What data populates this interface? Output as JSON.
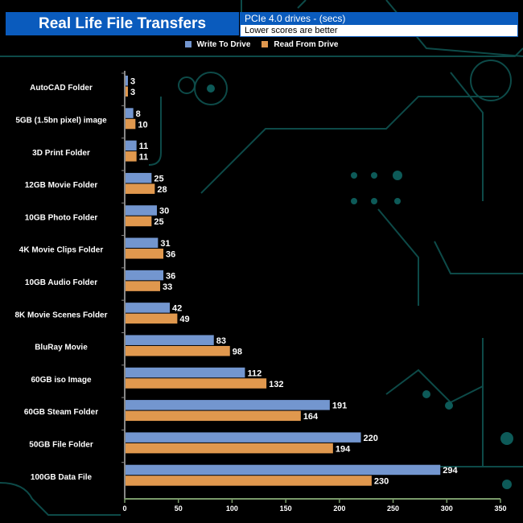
{
  "header": {
    "title": "Real Life File Transfers",
    "subtitle": "PCIe 4.0 drives - (secs)",
    "note": "Lower scores are better"
  },
  "colors": {
    "write": "#7396cf",
    "read": "#e0984e",
    "title_bg": "#0a5bbd",
    "traces": "#0d4a48"
  },
  "chart_data": {
    "type": "bar",
    "orientation": "horizontal",
    "categories": [
      "AutoCAD Folder",
      "5GB (1.5bn pixel) image",
      "3D Print Folder",
      "12GB Movie Folder",
      "10GB Photo Folder",
      "4K Movie Clips Folder",
      "10GB Audio Folder",
      "8K Movie Scenes Folder",
      "BluRay Movie",
      "60GB iso Image",
      "60GB Steam Folder",
      "50GB File Folder",
      "100GB Data File"
    ],
    "series": [
      {
        "name": "Write To  Drive",
        "values": [
          3,
          8,
          11,
          25,
          30,
          31,
          36,
          42,
          83,
          112,
          191,
          220,
          294
        ]
      },
      {
        "name": "Read From  Drive",
        "values": [
          3,
          10,
          11,
          28,
          25,
          36,
          33,
          49,
          98,
          132,
          164,
          194,
          230
        ]
      }
    ],
    "xlim": [
      0,
      350
    ],
    "xticks": [
      0,
      50,
      100,
      150,
      200,
      250,
      300,
      350
    ],
    "legend": "top-center",
    "grid": false
  }
}
